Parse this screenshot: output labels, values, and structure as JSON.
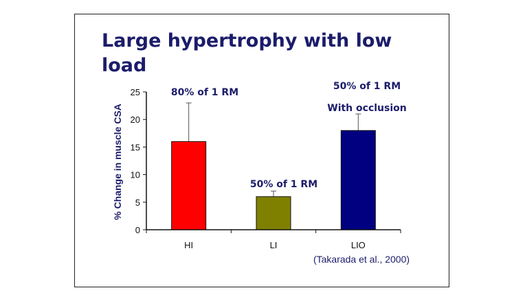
{
  "chart_data": {
    "type": "bar",
    "title": "Large hypertrophy with low load",
    "categories": [
      "HI",
      "LI",
      "LIO"
    ],
    "values": [
      16,
      6,
      18
    ],
    "error_upper": [
      23,
      7,
      21
    ],
    "colors": [
      "#ff0000",
      "#808000",
      "#000080"
    ],
    "annotations": [
      "80% of 1 RM",
      "50% of 1 RM",
      "50% of 1 RM",
      "With occlusion"
    ],
    "ylabel": "% Change in muscle CSA",
    "xlabel": "",
    "ylim": [
      0,
      25
    ],
    "yticks": [
      0,
      5,
      10,
      15,
      20,
      25
    ],
    "citation": "(Takarada et al., 2000)",
    "grid": false
  }
}
